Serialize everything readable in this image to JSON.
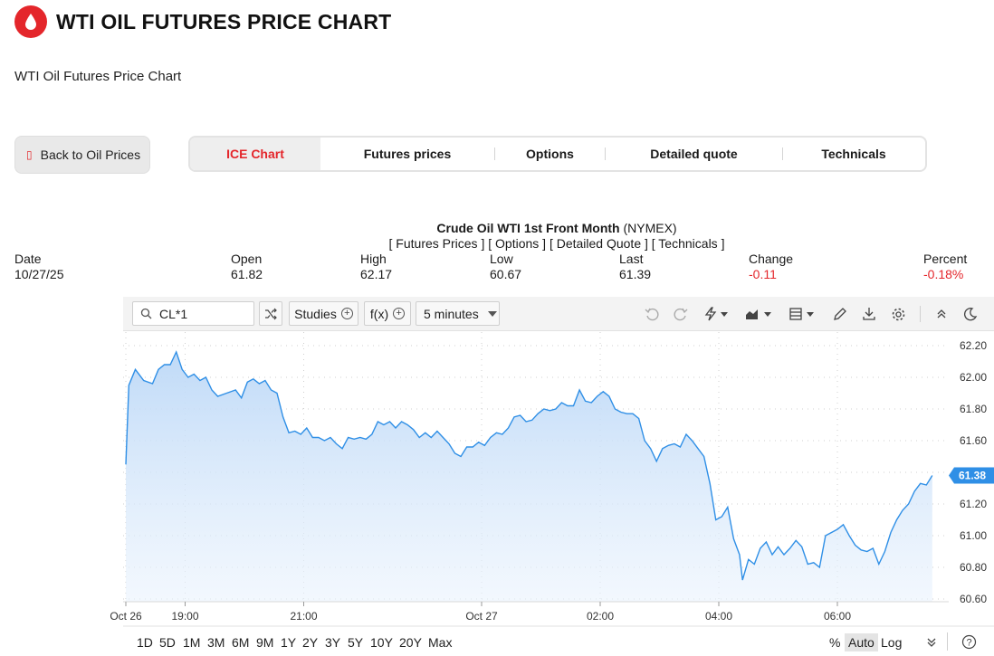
{
  "header": {
    "title": "WTI OIL FUTURES PRICE CHART",
    "subtitle": "WTI Oil Futures Price Chart",
    "brand_color": "#e4262b"
  },
  "back_button": {
    "label": "Back to Oil Prices",
    "icon": "document-icon"
  },
  "tabs": [
    {
      "label": "ICE Chart",
      "active": true
    },
    {
      "label": "Futures prices",
      "active": false
    },
    {
      "label": "Options",
      "active": false
    },
    {
      "label": "Detailed quote",
      "active": false
    },
    {
      "label": "Technicals",
      "active": false
    }
  ],
  "quote": {
    "name": "Crude Oil WTI 1st Front Month",
    "exchange": "(NYMEX)",
    "links": [
      "[ Futures Prices ]",
      "[ Options ]",
      "[ Detailed Quote ]",
      "[ Technicals ]"
    ],
    "columns": [
      {
        "label": "Date",
        "value": "10/27/25"
      },
      {
        "label": "Open",
        "value": "61.82"
      },
      {
        "label": "High",
        "value": "62.17"
      },
      {
        "label": "Low",
        "value": "60.67"
      },
      {
        "label": "Last",
        "value": "61.39"
      },
      {
        "label": "Change",
        "value": "-0.11"
      },
      {
        "label": "Percent",
        "value": "-0.18%"
      }
    ]
  },
  "toolbar": {
    "symbol": "CL*1",
    "studies_label": "Studies",
    "fx_label": "f(x)",
    "interval_label": "5 minutes",
    "icons": [
      "undo-icon",
      "redo-icon",
      "lightning-icon",
      "chart-type-icon",
      "layout-icon",
      "pencil-icon",
      "download-icon",
      "settings-icon",
      "collapse-up-icon",
      "dark-mode-icon"
    ]
  },
  "range_bar": {
    "ranges": [
      "1D",
      "5D",
      "1M",
      "3M",
      "6M",
      "9M",
      "1Y",
      "2Y",
      "3Y",
      "5Y",
      "10Y",
      "20Y",
      "Max"
    ],
    "scale_options": [
      "%",
      "Auto",
      "Log"
    ],
    "active_scale": "Auto"
  },
  "chart_data": {
    "type": "area",
    "title": "",
    "xlabel": "",
    "ylabel": "",
    "ylim": [
      60.6,
      62.25
    ],
    "y_ticks": [
      "62.20",
      "62.00",
      "61.80",
      "61.60",
      "61.40",
      "61.20",
      "61.00",
      "60.80",
      "60.60"
    ],
    "x_ticks": [
      "Oct 26",
      "19:00",
      "21:00",
      "Oct 27",
      "02:00",
      "04:00",
      "06:00"
    ],
    "last_price_label": "61.38",
    "grid": true,
    "line_color": "#2f8fe6",
    "fill_color": "#cfe3fa",
    "x_unit": "hours since 18:00 (Oct 26)",
    "series": [
      {
        "values": [
          [
            0.0,
            61.45
          ],
          [
            0.05,
            61.95
          ],
          [
            0.16,
            62.05
          ],
          [
            0.3,
            61.98
          ],
          [
            0.45,
            61.96
          ],
          [
            0.55,
            62.05
          ],
          [
            0.65,
            62.08
          ],
          [
            0.75,
            62.08
          ],
          [
            0.85,
            62.16
          ],
          [
            0.95,
            62.05
          ],
          [
            1.05,
            62.0
          ],
          [
            1.15,
            62.02
          ],
          [
            1.25,
            61.98
          ],
          [
            1.35,
            62.0
          ],
          [
            1.45,
            61.92
          ],
          [
            1.55,
            61.88
          ],
          [
            1.7,
            61.9
          ],
          [
            1.85,
            61.92
          ],
          [
            1.95,
            61.87
          ],
          [
            2.05,
            61.97
          ],
          [
            2.15,
            61.99
          ],
          [
            2.25,
            61.96
          ],
          [
            2.35,
            61.98
          ],
          [
            2.45,
            61.92
          ],
          [
            2.55,
            61.9
          ],
          [
            2.65,
            61.75
          ],
          [
            2.75,
            61.65
          ],
          [
            2.85,
            61.66
          ],
          [
            2.95,
            61.64
          ],
          [
            3.05,
            61.68
          ],
          [
            3.15,
            61.62
          ],
          [
            3.25,
            61.62
          ],
          [
            3.35,
            61.6
          ],
          [
            3.45,
            61.62
          ],
          [
            3.55,
            61.58
          ],
          [
            3.65,
            61.55
          ],
          [
            3.75,
            61.62
          ],
          [
            3.85,
            61.61
          ],
          [
            3.95,
            61.62
          ],
          [
            4.05,
            61.61
          ],
          [
            4.15,
            61.64
          ],
          [
            4.25,
            61.72
          ],
          [
            4.35,
            61.7
          ],
          [
            4.45,
            61.72
          ],
          [
            4.55,
            61.68
          ],
          [
            4.65,
            61.72
          ],
          [
            4.75,
            61.7
          ],
          [
            4.85,
            61.67
          ],
          [
            4.95,
            61.62
          ],
          [
            5.05,
            61.65
          ],
          [
            5.15,
            61.62
          ],
          [
            5.25,
            61.66
          ],
          [
            5.35,
            61.62
          ],
          [
            5.45,
            61.58
          ],
          [
            5.55,
            61.52
          ],
          [
            5.65,
            61.5
          ],
          [
            5.75,
            61.56
          ],
          [
            5.85,
            61.56
          ],
          [
            5.95,
            61.59
          ],
          [
            6.05,
            61.57
          ],
          [
            6.15,
            61.62
          ],
          [
            6.25,
            61.65
          ],
          [
            6.35,
            61.64
          ],
          [
            6.45,
            61.68
          ],
          [
            6.55,
            61.75
          ],
          [
            6.65,
            61.76
          ],
          [
            6.75,
            61.72
          ],
          [
            6.85,
            61.73
          ],
          [
            6.95,
            61.77
          ],
          [
            7.05,
            61.8
          ],
          [
            7.15,
            61.79
          ],
          [
            7.25,
            61.8
          ],
          [
            7.35,
            61.84
          ],
          [
            7.45,
            61.82
          ],
          [
            7.55,
            61.82
          ],
          [
            7.65,
            61.92
          ],
          [
            7.75,
            61.85
          ],
          [
            7.85,
            61.84
          ],
          [
            7.95,
            61.88
          ],
          [
            8.05,
            61.91
          ],
          [
            8.15,
            61.88
          ],
          [
            8.25,
            61.8
          ],
          [
            8.35,
            61.78
          ],
          [
            8.45,
            61.77
          ],
          [
            8.55,
            61.77
          ],
          [
            8.65,
            61.74
          ],
          [
            8.75,
            61.6
          ],
          [
            8.85,
            61.55
          ],
          [
            8.95,
            61.47
          ],
          [
            9.05,
            61.55
          ],
          [
            9.15,
            61.57
          ],
          [
            9.25,
            61.58
          ],
          [
            9.35,
            61.56
          ],
          [
            9.45,
            61.64
          ],
          [
            9.55,
            61.6
          ],
          [
            9.65,
            61.55
          ],
          [
            9.75,
            61.5
          ],
          [
            9.85,
            61.33
          ],
          [
            9.95,
            61.1
          ],
          [
            10.05,
            61.12
          ],
          [
            10.15,
            61.18
          ],
          [
            10.25,
            60.98
          ],
          [
            10.35,
            60.88
          ],
          [
            10.4,
            60.72
          ],
          [
            10.5,
            60.85
          ],
          [
            10.6,
            60.82
          ],
          [
            10.7,
            60.92
          ],
          [
            10.8,
            60.96
          ],
          [
            10.9,
            60.88
          ],
          [
            11.0,
            60.93
          ],
          [
            11.1,
            60.88
          ],
          [
            11.2,
            60.92
          ],
          [
            11.3,
            60.97
          ],
          [
            11.4,
            60.93
          ],
          [
            11.5,
            60.82
          ],
          [
            11.6,
            60.83
          ],
          [
            11.7,
            60.8
          ],
          [
            11.8,
            61.0
          ],
          [
            11.9,
            61.02
          ],
          [
            12.0,
            61.04
          ],
          [
            12.1,
            61.07
          ],
          [
            12.2,
            61.0
          ],
          [
            12.3,
            60.94
          ],
          [
            12.4,
            60.91
          ],
          [
            12.5,
            60.9
          ],
          [
            12.6,
            60.92
          ],
          [
            12.7,
            60.82
          ],
          [
            12.8,
            60.9
          ],
          [
            12.9,
            61.02
          ],
          [
            13.0,
            61.1
          ],
          [
            13.1,
            61.16
          ],
          [
            13.2,
            61.2
          ],
          [
            13.3,
            61.28
          ],
          [
            13.4,
            61.33
          ],
          [
            13.5,
            61.32
          ],
          [
            13.6,
            61.38
          ]
        ]
      }
    ]
  }
}
